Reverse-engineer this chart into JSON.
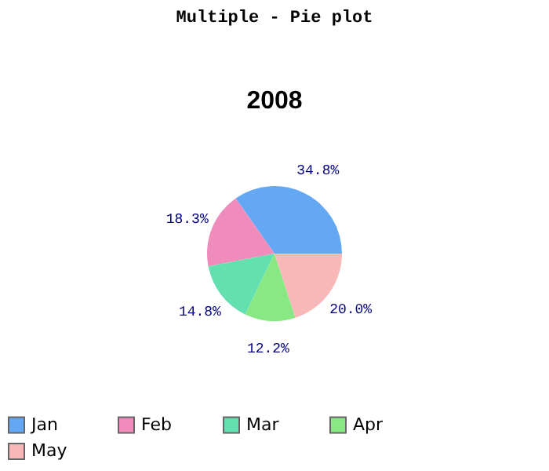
{
  "chart_data": {
    "type": "pie",
    "title": "Multiple - Pie plot",
    "subtitle": "2008",
    "categories": [
      "Jan",
      "Feb",
      "Mar",
      "Apr",
      "May"
    ],
    "values": [
      34.8,
      18.3,
      14.8,
      12.2,
      20.0
    ],
    "colors": [
      "#64a8f4",
      "#f08cbc",
      "#64e0b0",
      "#88e884",
      "#f8b8b8"
    ],
    "value_labels": [
      "34.8%",
      "18.3%",
      "14.8%",
      "12.2%",
      "20.0%"
    ],
    "legend": "bottom"
  }
}
